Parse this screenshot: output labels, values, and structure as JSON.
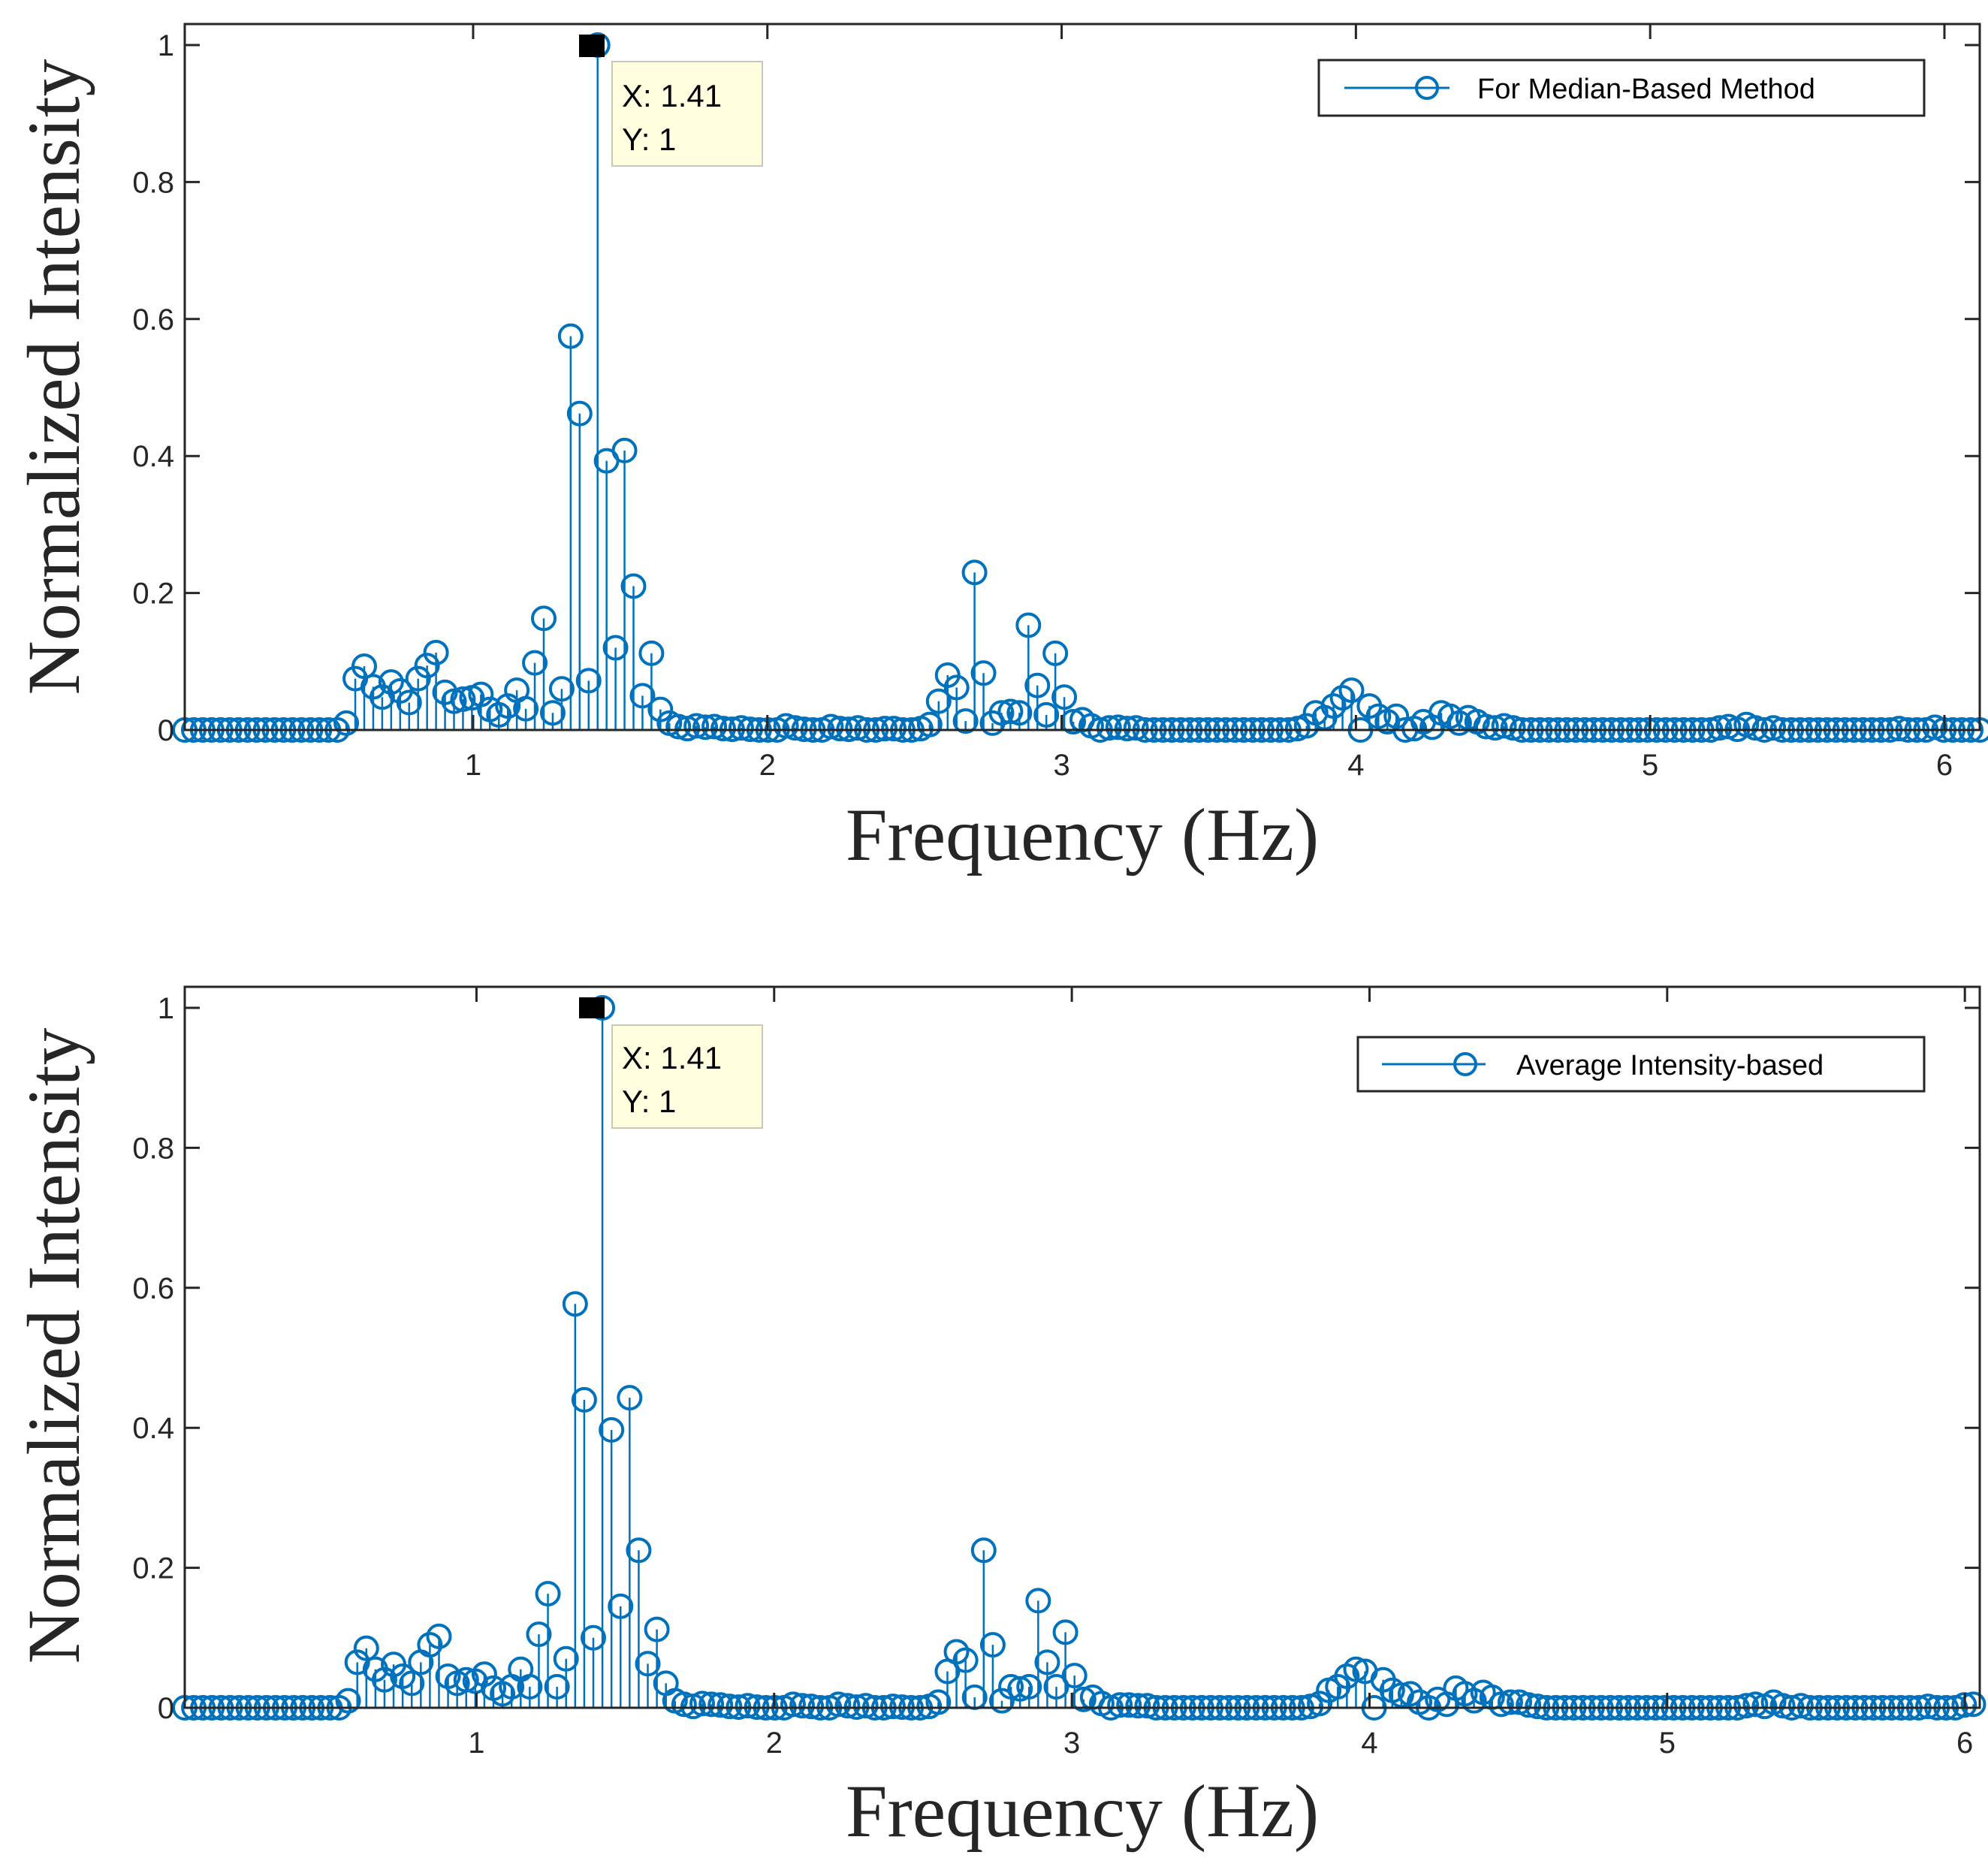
{
  "colors": {
    "series": "#0072BD",
    "axis": "#262626",
    "tooltip_bg": "#FFFFE0"
  },
  "chart_data": [
    {
      "type": "stem",
      "title": "",
      "xlabel": "Frequency (Hz)",
      "ylabel": "Normalized Intensity",
      "xlim": [
        0.02,
        6.12
      ],
      "ylim": [
        0,
        1
      ],
      "xticks": [
        1,
        2,
        3,
        4,
        5,
        6
      ],
      "yticks": [
        0,
        0.2,
        0.4,
        0.6,
        0.8,
        1
      ],
      "ytick_labels": [
        "0",
        "0.2",
        "0.4",
        "0.6",
        "0.8",
        "1"
      ],
      "legend": {
        "label": "For Median-Based Method",
        "position": "top-right"
      },
      "datatip": {
        "x": 1.41,
        "y": 1,
        "x_text": "X: 1.41",
        "y_text": "Y: 1"
      },
      "series": [
        {
          "name": "For Median-Based Method",
          "x_start": 0.02,
          "x_step": 0.0305,
          "values": [
            0,
            0,
            0,
            0,
            0,
            0,
            0,
            0,
            0,
            0,
            0,
            0,
            0,
            0,
            0,
            0,
            0,
            0,
            0.01,
            0.075,
            0.093,
            0.063,
            0.048,
            0.07,
            0.057,
            0.04,
            0.075,
            0.094,
            0.113,
            0.055,
            0.042,
            0.045,
            0.047,
            0.052,
            0.03,
            0.022,
            0.035,
            0.058,
            0.031,
            0.098,
            0.163,
            0.025,
            0.06,
            0.575,
            0.462,
            0.072,
            1.0,
            0.393,
            0.12,
            0.408,
            0.21,
            0.05,
            0.112,
            0.03,
            0.01,
            0.005,
            0.002,
            0.006,
            0.004,
            0.005,
            0.002,
            0.001,
            0.003,
            0.001,
            0.0,
            0.0,
            0.0,
            0.006,
            0.003,
            0.001,
            0.0,
            0.0,
            0.005,
            0.002,
            0.001,
            0.003,
            0.0,
            0.0,
            0.002,
            0.002,
            0.0,
            0.0,
            0.002,
            0.008,
            0.042,
            0.08,
            0.062,
            0.013,
            0.23,
            0.083,
            0.01,
            0.025,
            0.027,
            0.025,
            0.153,
            0.065,
            0.022,
            0.112,
            0.048,
            0.012,
            0.015,
            0.006,
            0.0,
            0.003,
            0.004,
            0.002,
            0.003,
            0.0,
            0.0,
            0.0,
            0.0,
            0.0,
            0.0,
            0.0,
            0.0,
            0.0,
            0.0,
            0.0,
            0.0,
            0.0,
            0.0,
            0.0,
            0.0,
            0.0,
            0.002,
            0.006,
            0.025,
            0.018,
            0.035,
            0.047,
            0.058,
            0.0,
            0.035,
            0.02,
            0.012,
            0.02,
            0.0,
            0.002,
            0.012,
            0.004,
            0.025,
            0.02,
            0.01,
            0.018,
            0.012,
            0.005,
            0.003,
            0.006,
            0.003,
            0.0,
            0.0,
            0.0,
            0.0,
            0.0,
            0.0,
            0.0,
            0.0,
            0.0,
            0.0,
            0.0,
            0.0,
            0.0,
            0.0,
            0.0,
            0.0,
            0.0,
            0.0,
            0.0,
            0.0,
            0.0,
            0.0,
            0.003,
            0.005,
            0.001,
            0.008,
            0.003,
            0.0,
            0.003,
            0.0,
            0.0,
            0.0,
            0.0,
            0.0,
            0.0,
            0.0,
            0.0,
            0.0,
            0.0,
            0.0,
            0.0,
            0.0,
            0.002,
            0.0,
            0.0,
            0.0,
            0.004,
            0.0,
            0.0,
            0.0,
            0.0,
            0.0,
            0.0
          ]
        }
      ]
    },
    {
      "type": "stem",
      "title": "",
      "xlabel": "Frequency (Hz)",
      "ylabel": "Normalized Intensity",
      "xlim": [
        0.02,
        6.05
      ],
      "ylim": [
        0,
        1
      ],
      "xticks": [
        1,
        2,
        3,
        4,
        5,
        6
      ],
      "yticks": [
        0,
        0.2,
        0.4,
        0.6,
        0.8,
        1
      ],
      "ytick_labels": [
        "0",
        "0.2",
        "0.4",
        "0.6",
        "0.8",
        "1"
      ],
      "legend": {
        "label": "Average Intensity-based",
        "position": "top-right"
      },
      "datatip": {
        "x": 1.41,
        "y": 1,
        "x_text": "X: 1.41",
        "y_text": "Y: 1"
      },
      "series": [
        {
          "name": "Average Intensity-based",
          "x_start": 0.02,
          "x_step": 0.0305,
          "values": [
            0,
            0,
            0,
            0,
            0,
            0,
            0,
            0,
            0,
            0,
            0,
            0,
            0,
            0,
            0,
            0,
            0,
            0,
            0.01,
            0.065,
            0.085,
            0.055,
            0.04,
            0.062,
            0.045,
            0.035,
            0.065,
            0.09,
            0.102,
            0.045,
            0.035,
            0.04,
            0.038,
            0.048,
            0.028,
            0.02,
            0.03,
            0.055,
            0.03,
            0.105,
            0.163,
            0.03,
            0.07,
            0.577,
            0.44,
            0.1,
            1.0,
            0.397,
            0.145,
            0.443,
            0.225,
            0.063,
            0.112,
            0.035,
            0.01,
            0.005,
            0.002,
            0.006,
            0.005,
            0.004,
            0.002,
            0.001,
            0.003,
            0.001,
            0.0,
            0.0,
            0.0,
            0.005,
            0.003,
            0.002,
            0.0,
            0.0,
            0.005,
            0.003,
            0.001,
            0.003,
            0.0,
            0.0,
            0.002,
            0.001,
            0.0,
            0.0,
            0.002,
            0.008,
            0.052,
            0.08,
            0.068,
            0.015,
            0.225,
            0.09,
            0.01,
            0.03,
            0.027,
            0.03,
            0.153,
            0.065,
            0.03,
            0.108,
            0.046,
            0.012,
            0.015,
            0.006,
            0.0,
            0.004,
            0.004,
            0.003,
            0.003,
            0.0,
            0.0,
            0.0,
            0.0,
            0.0,
            0.0,
            0.0,
            0.0,
            0.0,
            0.0,
            0.0,
            0.0,
            0.0,
            0.0,
            0.0,
            0.0,
            0.0,
            0.002,
            0.006,
            0.025,
            0.03,
            0.045,
            0.055,
            0.052,
            0.0,
            0.04,
            0.025,
            0.018,
            0.02,
            0.008,
            0.0,
            0.012,
            0.005,
            0.028,
            0.02,
            0.01,
            0.022,
            0.015,
            0.005,
            0.008,
            0.008,
            0.004,
            0.002,
            0.0,
            0.0,
            0.0,
            0.0,
            0.0,
            0.0,
            0.0,
            0.0,
            0.0,
            0.0,
            0.0,
            0.0,
            0.0,
            0.0,
            0.0,
            0.0,
            0.0,
            0.0,
            0.0,
            0.0,
            0.0,
            0.0,
            0.003,
            0.005,
            0.002,
            0.008,
            0.003,
            0.0,
            0.003,
            0.0,
            0.0,
            0.0,
            0.0,
            0.0,
            0.0,
            0.0,
            0.0,
            0.0,
            0.0,
            0.0,
            0.0,
            0.0,
            0.002,
            0.0,
            0.0,
            0.0,
            0.004,
            0.005,
            0.002,
            0.0,
            0.0,
            0.0,
            0.0
          ]
        }
      ]
    }
  ]
}
